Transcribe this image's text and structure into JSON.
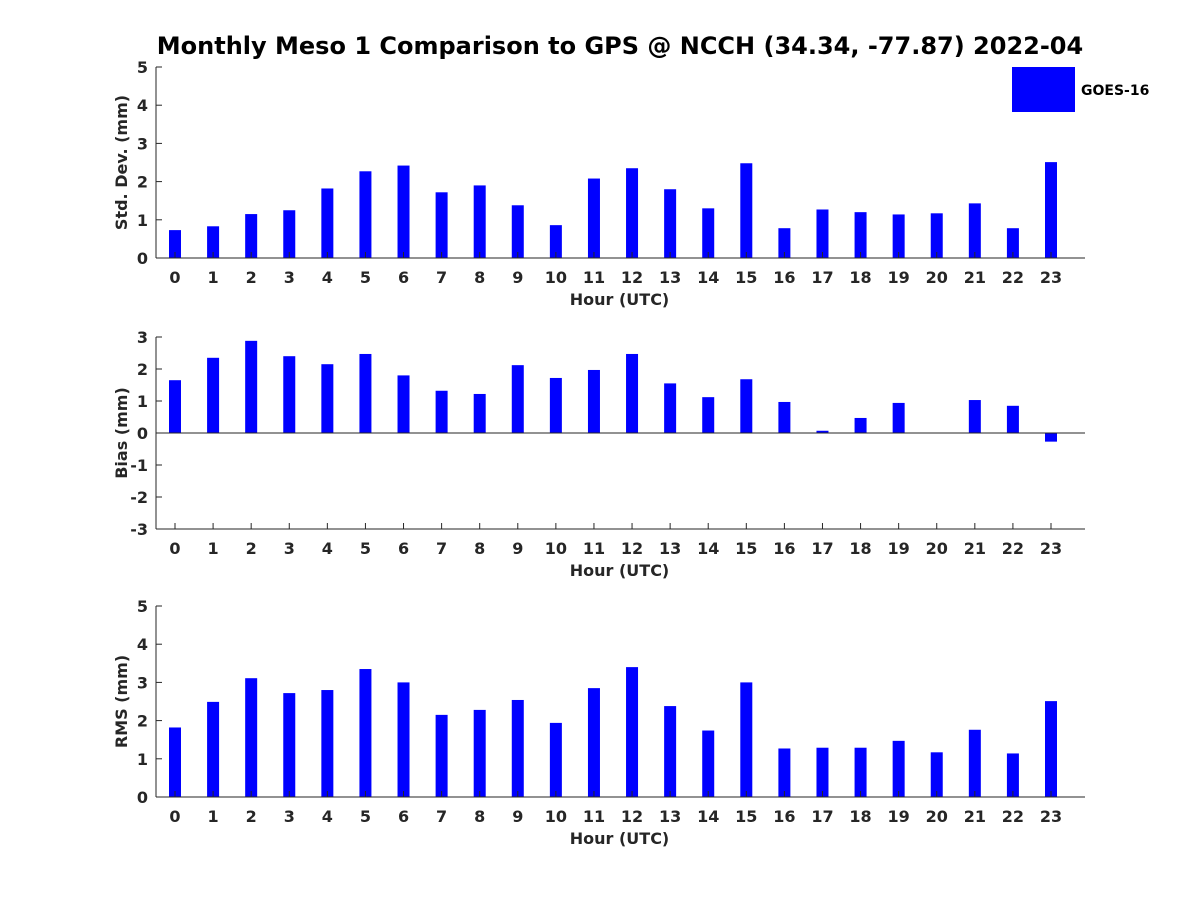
{
  "title": "Monthly Meso 1 Comparison to GPS @ NCCH (34.34, -77.87) 2022-04",
  "legend": {
    "label": "GOES-16",
    "color": "#0000ff",
    "placement": "top-right"
  },
  "chart_data": [
    {
      "type": "bar",
      "ylabel": "Std. Dev. (mm)",
      "xlabel": "Hour (UTC)",
      "ylim": [
        0,
        5
      ],
      "yticks": [
        0,
        1,
        2,
        3,
        4,
        5
      ],
      "categories": [
        "0",
        "1",
        "2",
        "3",
        "4",
        "5",
        "6",
        "7",
        "8",
        "9",
        "10",
        "11",
        "12",
        "13",
        "14",
        "15",
        "16",
        "17",
        "18",
        "19",
        "20",
        "21",
        "22",
        "23"
      ],
      "series": [
        {
          "name": "GOES-16",
          "color": "#0000ff",
          "values": [
            0.73,
            0.83,
            1.15,
            1.25,
            1.82,
            2.27,
            2.42,
            1.72,
            1.9,
            1.38,
            0.86,
            2.08,
            2.35,
            1.8,
            1.3,
            2.48,
            0.78,
            1.27,
            1.2,
            1.14,
            1.17,
            1.43,
            0.78,
            2.51
          ]
        }
      ]
    },
    {
      "type": "bar",
      "ylabel": "Bias (mm)",
      "xlabel": "Hour (UTC)",
      "ylim": [
        -3,
        3
      ],
      "yticks": [
        -3,
        -2,
        -1,
        0,
        1,
        2,
        3
      ],
      "categories": [
        "0",
        "1",
        "2",
        "3",
        "4",
        "5",
        "6",
        "7",
        "8",
        "9",
        "10",
        "11",
        "12",
        "13",
        "14",
        "15",
        "16",
        "17",
        "18",
        "19",
        "20",
        "21",
        "22",
        "23"
      ],
      "series": [
        {
          "name": "GOES-16",
          "color": "#0000ff",
          "values": [
            1.65,
            2.35,
            2.88,
            2.4,
            2.15,
            2.47,
            1.8,
            1.32,
            1.22,
            2.12,
            1.72,
            1.97,
            2.47,
            1.55,
            1.12,
            1.68,
            0.97,
            0.07,
            0.47,
            0.94,
            0.0,
            1.03,
            0.85,
            -0.27
          ]
        }
      ]
    },
    {
      "type": "bar",
      "ylabel": "RMS (mm)",
      "xlabel": "Hour (UTC)",
      "ylim": [
        0,
        5
      ],
      "yticks": [
        0,
        1,
        2,
        3,
        4,
        5
      ],
      "categories": [
        "0",
        "1",
        "2",
        "3",
        "4",
        "5",
        "6",
        "7",
        "8",
        "9",
        "10",
        "11",
        "12",
        "13",
        "14",
        "15",
        "16",
        "17",
        "18",
        "19",
        "20",
        "21",
        "22",
        "23"
      ],
      "series": [
        {
          "name": "GOES-16",
          "color": "#0000ff",
          "values": [
            1.82,
            2.49,
            3.11,
            2.72,
            2.8,
            3.35,
            3.0,
            2.15,
            2.28,
            2.54,
            1.94,
            2.85,
            3.4,
            2.38,
            1.74,
            3.0,
            1.27,
            1.29,
            1.29,
            1.47,
            1.17,
            1.76,
            1.14,
            2.51
          ]
        }
      ]
    }
  ]
}
